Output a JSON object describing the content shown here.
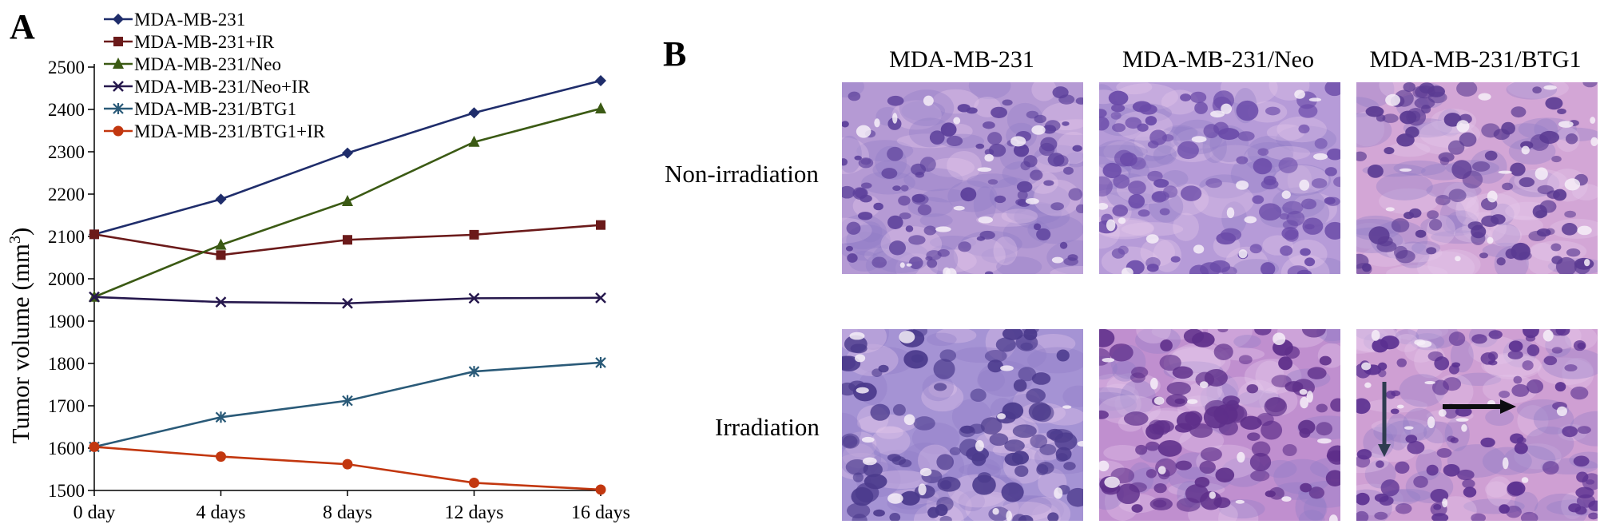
{
  "panels": {
    "a_letter": "A",
    "b_letter": "B"
  },
  "chart_data": {
    "type": "line",
    "ylabel": "Tumor volume (mm³)",
    "ylabel_main": "Tumor volume (mm",
    "ylabel_sup": "3",
    "ylabel_end": ")",
    "xlabel": "",
    "categories": [
      "0 day",
      "4 days",
      "8 days",
      "12 days",
      "16 days"
    ],
    "ylim": [
      1500,
      2500
    ],
    "yticks": [
      1500,
      1600,
      1700,
      1800,
      1900,
      2000,
      2100,
      2200,
      2300,
      2400,
      2500
    ],
    "grid": false,
    "legend_position": "top-left",
    "series": [
      {
        "name": "MDA-MB-231",
        "color": "#1f2d6b",
        "marker": "diamond",
        "values": [
          2105,
          2188,
          2297,
          2392,
          2468
        ]
      },
      {
        "name": "MDA-MB-231+IR",
        "color": "#6b1a1a",
        "marker": "square",
        "values": [
          2105,
          2056,
          2092,
          2104,
          2127
        ]
      },
      {
        "name": "MDA-MB-231/Neo",
        "color": "#3b5a14",
        "marker": "triangle",
        "values": [
          1957,
          2080,
          2183,
          2323,
          2402
        ]
      },
      {
        "name": "MDA-MB-231/Neo+IR",
        "color": "#26184d",
        "marker": "x",
        "values": [
          1957,
          1945,
          1942,
          1954,
          1955
        ]
      },
      {
        "name": "MDA-MB-231/BTG1",
        "color": "#2a5a78",
        "marker": "star",
        "values": [
          1603,
          1673,
          1712,
          1781,
          1802
        ]
      },
      {
        "name": "MDA-MB-231/BTG1+IR",
        "color": "#c2370f",
        "marker": "circle",
        "values": [
          1603,
          1580,
          1562,
          1518,
          1502
        ]
      }
    ]
  },
  "micrographs": {
    "columns": [
      "MDA-MB-231",
      "MDA-MB-231/Neo",
      "MDA-MB-231/BTG1"
    ],
    "rows": [
      "Non-irradiation",
      "Irradiation"
    ]
  }
}
